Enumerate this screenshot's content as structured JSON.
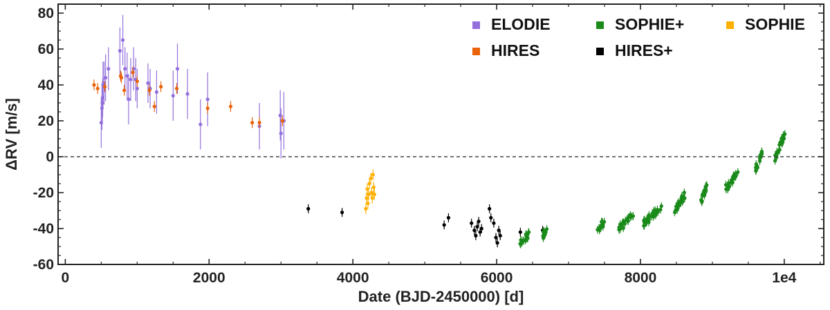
{
  "chart_data": {
    "type": "scatter",
    "title": "",
    "xlabel": "Date (BJD-2450000) [d]",
    "ylabel": "ΔRV [m/s]",
    "xlim": [
      -100,
      10550
    ],
    "ylim": [
      -60,
      85
    ],
    "x_ticks": [
      0,
      2000,
      4000,
      6000,
      8000,
      10000
    ],
    "x_tick_labels": [
      "0",
      "2000",
      "4000",
      "6000",
      "8000",
      "1e4"
    ],
    "y_ticks": [
      -60,
      -40,
      -20,
      0,
      20,
      40,
      60,
      80
    ],
    "y_tick_labels": [
      "-60",
      "-40",
      "-20",
      "0",
      "20",
      "40",
      "60",
      "80"
    ],
    "reference_line": 0,
    "grid": false,
    "legend_position": "top-right",
    "series": [
      {
        "name": "ELODIE",
        "color": "#9370db",
        "points": [
          [
            500,
            19,
            14
          ],
          [
            510,
            27,
            12
          ],
          [
            515,
            30,
            12
          ],
          [
            520,
            33,
            11
          ],
          [
            525,
            40,
            13
          ],
          [
            540,
            41,
            12
          ],
          [
            560,
            44,
            13
          ],
          [
            600,
            49,
            12
          ],
          [
            760,
            59,
            13
          ],
          [
            800,
            65,
            14
          ],
          [
            830,
            49,
            12
          ],
          [
            860,
            45,
            13
          ],
          [
            880,
            32,
            14
          ],
          [
            910,
            43,
            12
          ],
          [
            950,
            49,
            12
          ],
          [
            980,
            43,
            12
          ],
          [
            1000,
            38,
            11
          ],
          [
            1150,
            41,
            11
          ],
          [
            1180,
            38,
            11
          ],
          [
            1270,
            36,
            12
          ],
          [
            1500,
            34,
            14
          ],
          [
            1560,
            49,
            14
          ],
          [
            1700,
            35,
            14
          ],
          [
            1880,
            18,
            14
          ],
          [
            1980,
            32,
            15
          ],
          [
            2700,
            17,
            13
          ],
          [
            2990,
            23,
            14
          ],
          [
            3000,
            13,
            14
          ],
          [
            3040,
            20,
            16
          ]
        ]
      },
      {
        "name": "HIRES",
        "color": "#e8630a",
        "points": [
          [
            400,
            40,
            3
          ],
          [
            450,
            38,
            3
          ],
          [
            550,
            39,
            3
          ],
          [
            770,
            45,
            3
          ],
          [
            780,
            44,
            3
          ],
          [
            820,
            37,
            3
          ],
          [
            940,
            47,
            3
          ],
          [
            1000,
            42,
            3
          ],
          [
            1170,
            37,
            3
          ],
          [
            1240,
            28,
            3
          ],
          [
            1330,
            39,
            3
          ],
          [
            1550,
            38,
            3
          ],
          [
            1980,
            27,
            3
          ],
          [
            2300,
            28,
            3
          ],
          [
            2600,
            19,
            3
          ],
          [
            2700,
            19,
            3
          ],
          [
            3020,
            20,
            3
          ]
        ]
      },
      {
        "name": "SOPHIE",
        "color": "#ffb000",
        "points": [
          [
            4180,
            -29,
            3
          ],
          [
            4190,
            -23,
            3
          ],
          [
            4200,
            -18,
            3
          ],
          [
            4210,
            -26,
            3
          ],
          [
            4220,
            -21,
            3
          ],
          [
            4230,
            -15,
            3
          ],
          [
            4250,
            -12,
            3
          ],
          [
            4260,
            -20,
            3
          ],
          [
            4270,
            -23,
            3
          ],
          [
            4280,
            -10,
            3
          ],
          [
            4290,
            -17,
            3
          ],
          [
            4300,
            -21,
            3
          ]
        ]
      },
      {
        "name": "HIRES+",
        "color": "#000000",
        "points": [
          [
            3380,
            -29,
            2.5
          ],
          [
            3850,
            -31,
            2.5
          ],
          [
            5270,
            -38,
            2.5
          ],
          [
            5330,
            -34,
            2.5
          ],
          [
            5650,
            -37,
            2.5
          ],
          [
            5690,
            -41,
            2.5
          ],
          [
            5710,
            -44,
            2.5
          ],
          [
            5730,
            -39,
            2.5
          ],
          [
            5750,
            -36,
            2.5
          ],
          [
            5770,
            -42,
            2.5
          ],
          [
            5790,
            -40,
            2.5
          ],
          [
            5900,
            -29,
            2.5
          ],
          [
            5920,
            -34,
            2.5
          ],
          [
            5960,
            -37,
            2.5
          ],
          [
            5990,
            -45,
            2.5
          ],
          [
            6010,
            -48,
            2.5
          ],
          [
            6030,
            -41,
            2.5
          ],
          [
            6050,
            -44,
            2.5
          ],
          [
            6330,
            -42,
            2.5
          ],
          [
            6640,
            -41,
            2.5
          ]
        ]
      },
      {
        "name": "SOPHIE+",
        "color": "#1a8a1a",
        "clusters": [
          {
            "x": [
              6310,
              6460
            ],
            "y": [
              -49,
              -43
            ],
            "n": 18
          },
          {
            "x": [
              6610,
              6700
            ],
            "y": [
              -46,
              -40
            ],
            "n": 12
          },
          {
            "x": [
              7400,
              7520
            ],
            "y": [
              -41,
              -35
            ],
            "n": 12
          },
          {
            "x": [
              7700,
              7900
            ],
            "y": [
              -40,
              -33
            ],
            "n": 20
          },
          {
            "x": [
              8020,
              8300
            ],
            "y": [
              -38,
              -28
            ],
            "n": 30
          },
          {
            "x": [
              8470,
              8620
            ],
            "y": [
              -31,
              -21
            ],
            "n": 25
          },
          {
            "x": [
              8840,
              8930
            ],
            "y": [
              -25,
              -16
            ],
            "n": 15
          },
          {
            "x": [
              9180,
              9360
            ],
            "y": [
              -18,
              -9
            ],
            "n": 22
          },
          {
            "x": [
              9600,
              9690
            ],
            "y": [
              -7,
              2
            ],
            "n": 16
          },
          {
            "x": [
              9870,
              10020
            ],
            "y": [
              -1,
              14
            ],
            "n": 22
          }
        ]
      }
    ],
    "legend": [
      {
        "name": "ELODIE",
        "color": "#9370db"
      },
      {
        "name": "SOPHIE+",
        "color": "#1a8a1a"
      },
      {
        "name": "SOPHIE",
        "color": "#ffb000"
      },
      {
        "name": "HIRES",
        "color": "#e8630a"
      },
      {
        "name": "HIRES+",
        "color": "#000000"
      }
    ]
  }
}
